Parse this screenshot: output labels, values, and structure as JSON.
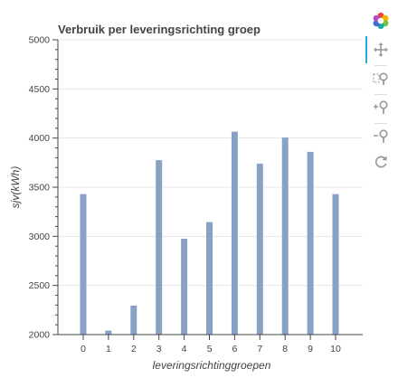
{
  "chart_data": {
    "type": "bar",
    "title": "Verbruik per leveringsrichting groep",
    "xlabel": "leveringsrichtinggroepen",
    "ylabel": "sjv(kWh)",
    "categories": [
      "0",
      "1",
      "2",
      "3",
      "4",
      "5",
      "6",
      "7",
      "8",
      "9",
      "10"
    ],
    "values": [
      3430,
      2040,
      2295,
      3775,
      2975,
      3145,
      4065,
      3740,
      4005,
      3860,
      3430
    ],
    "ylim": [
      2000,
      5000
    ],
    "yticks": [
      "2000",
      "2500",
      "3000",
      "3500",
      "4000",
      "4500",
      "5000"
    ],
    "grid": true,
    "bar_color": "#8aa1c6",
    "legend": "none"
  },
  "toolbar": {
    "tools": [
      {
        "name": "bokeh-logo-icon",
        "active": false
      },
      {
        "name": "pan-tool-icon",
        "active": true
      },
      {
        "name": "box-zoom-tool-icon",
        "active": false
      },
      {
        "name": "zoom-in-tool-icon",
        "active": false
      },
      {
        "name": "zoom-out-tool-icon",
        "active": false
      },
      {
        "name": "reset-tool-icon",
        "active": false
      }
    ]
  }
}
